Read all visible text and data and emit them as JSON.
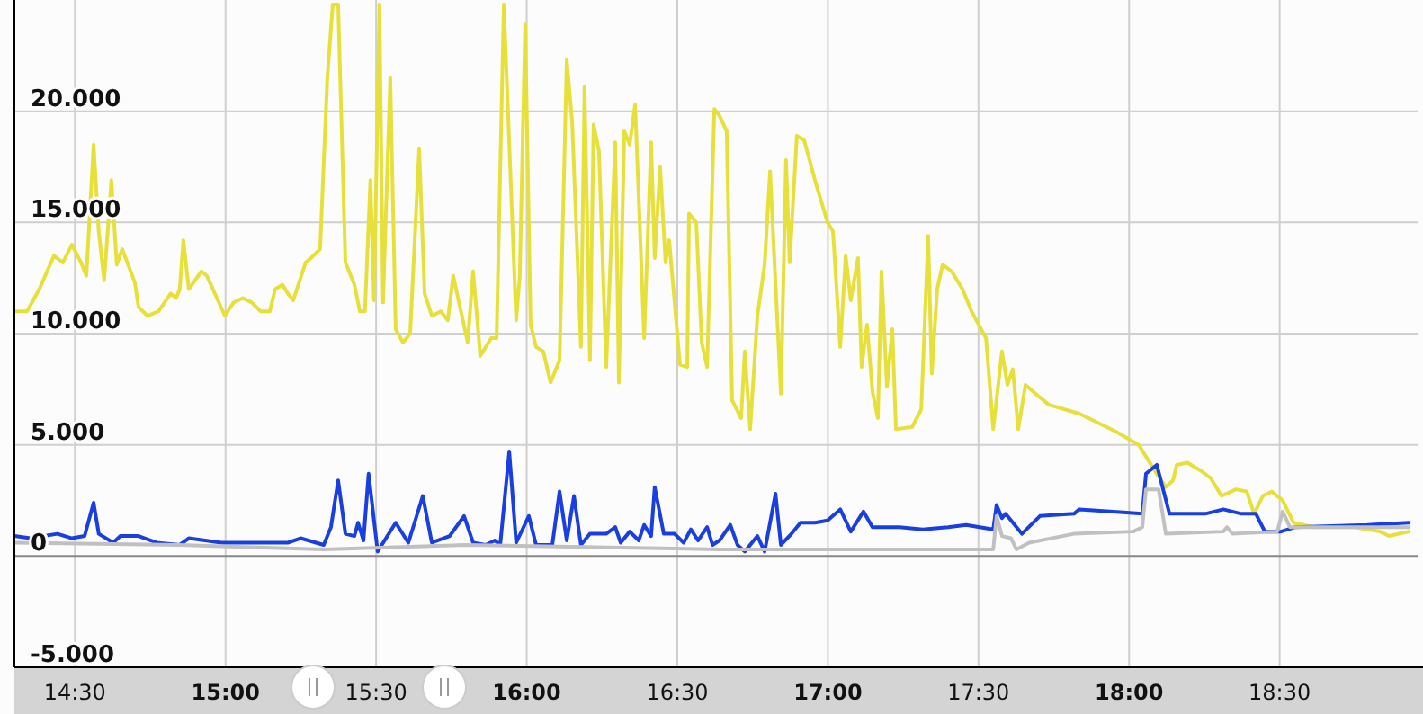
{
  "chart_data": {
    "type": "line",
    "grid": true,
    "marker": "none",
    "line_style": "solid",
    "xlim": [
      14.299,
      18.958
    ],
    "ylim": [
      -5000,
      25000
    ],
    "xticks": [
      {
        "value": 14.5,
        "label": "14:30"
      },
      {
        "value": 15,
        "label": "15:00"
      },
      {
        "value": 15.5,
        "label": "15:30"
      },
      {
        "value": 16,
        "label": "16:00"
      },
      {
        "value": 16.5,
        "label": "16:30"
      },
      {
        "value": 17,
        "label": "17:00"
      },
      {
        "value": 17.5,
        "label": "17:30"
      },
      {
        "value": 18,
        "label": "18:00"
      },
      {
        "value": 18.5,
        "label": "18:30"
      }
    ],
    "yticks": [
      {
        "value": -5000,
        "label": "-5.000"
      },
      0,
      {
        "value": 5000,
        "label": "5.000"
      },
      {
        "value": 10000,
        "label": "10.000"
      },
      {
        "value": 15000,
        "label": "15.000"
      },
      {
        "value": 20000,
        "label": "20.000"
      }
    ],
    "series": [
      {
        "color": "#e8e03a",
        "x": [
          14.299,
          14.341,
          14.382,
          14.43,
          14.46,
          14.49,
          14.52,
          14.538,
          14.562,
          14.579,
          14.597,
          14.621,
          14.639,
          14.657,
          14.699,
          14.711,
          14.741,
          14.777,
          14.818,
          14.836,
          14.848,
          14.86,
          14.878,
          14.92,
          14.938,
          14.998,
          15.027,
          15.057,
          15.087,
          15.117,
          15.147,
          15.165,
          15.189,
          15.207,
          15.225,
          15.266,
          15.284,
          15.314,
          15.338,
          15.356,
          15.374,
          15.398,
          15.428,
          15.446,
          15.463,
          15.481,
          15.493,
          15.511,
          15.523,
          15.547,
          15.565,
          15.589,
          15.613,
          15.643,
          15.661,
          15.685,
          15.715,
          15.738,
          15.756,
          15.804,
          15.822,
          15.846,
          15.882,
          15.9,
          15.924,
          15.965,
          15.977,
          15.995,
          16.013,
          16.031,
          16.055,
          16.079,
          16.109,
          16.133,
          16.151,
          16.18,
          16.192,
          16.21,
          16.222,
          16.24,
          16.264,
          16.294,
          16.306,
          16.324,
          16.342,
          16.36,
          16.39,
          16.413,
          16.425,
          16.443,
          16.461,
          16.473,
          16.509,
          16.533,
          16.539,
          16.563,
          16.581,
          16.599,
          16.623,
          16.64,
          16.664,
          16.682,
          16.712,
          16.724,
          16.742,
          16.766,
          16.79,
          16.808,
          16.844,
          16.861,
          16.873,
          16.897,
          16.921,
          16.957,
          16.999,
          17.017,
          17.041,
          17.059,
          17.076,
          17.1,
          17.112,
          17.13,
          17.148,
          17.166,
          17.178,
          17.196,
          17.214,
          17.226,
          17.28,
          17.31,
          17.333,
          17.345,
          17.363,
          17.381,
          17.411,
          17.447,
          17.477,
          17.525,
          17.549,
          17.578,
          17.596,
          17.614,
          17.632,
          17.656,
          17.698,
          17.734,
          17.835,
          17.955,
          18.032,
          18.092,
          18.122,
          18.146,
          18.158,
          18.194,
          18.242,
          18.271,
          18.307,
          18.355,
          18.391,
          18.415,
          18.444,
          18.474,
          18.51,
          18.546,
          18.612,
          18.749,
          18.833,
          18.863,
          18.929
        ],
        "values": [
          11000,
          11000,
          12000,
          13500,
          13200,
          14000,
          13200,
          12600,
          18500,
          14600,
          12400,
          16900,
          13100,
          13800,
          12300,
          11200,
          10800,
          11000,
          11800,
          11600,
          12000,
          14200,
          12000,
          12800,
          12600,
          10800,
          11400,
          11600,
          11400,
          11000,
          11000,
          12000,
          12200,
          11800,
          11500,
          13200,
          13400,
          13800,
          21500,
          24800,
          24800,
          13200,
          12200,
          11000,
          11000,
          16900,
          11500,
          24800,
          11400,
          21500,
          10200,
          9600,
          10000,
          18300,
          11800,
          10800,
          11000,
          10600,
          12600,
          9600,
          12800,
          9000,
          9800,
          9800,
          24800,
          10600,
          12600,
          23900,
          10400,
          9400,
          9200,
          7800,
          8800,
          22300,
          19500,
          9400,
          21100,
          8800,
          19400,
          18200,
          8500,
          18600,
          7800,
          19100,
          18500,
          20300,
          9800,
          18600,
          13400,
          17500,
          13200,
          14200,
          8600,
          8500,
          15400,
          15000,
          9600,
          8500,
          20100,
          19800,
          19100,
          7000,
          6200,
          9200,
          5700,
          10800,
          13100,
          17300,
          7300,
          17800,
          13200,
          18900,
          18700,
          16900,
          15000,
          14600,
          9400,
          13500,
          11500,
          13400,
          8500,
          10400,
          7400,
          6200,
          12800,
          7600,
          10200,
          5700,
          5800,
          6600,
          14400,
          8200,
          12000,
          13100,
          12800,
          12000,
          11000,
          9800,
          5700,
          9200,
          7700,
          8400,
          5700,
          7700,
          7200,
          6800,
          6400,
          5600,
          5000,
          3700,
          3100,
          3400,
          4100,
          4200,
          3800,
          3500,
          2700,
          3000,
          2900,
          1900,
          2700,
          2900,
          2500,
          1500,
          1300,
          1300,
          1100,
          900,
          1100
        ]
      },
      {
        "color": "#1a3fe0",
        "x": [
          14.299,
          14.352,
          14.442,
          14.49,
          14.532,
          14.562,
          14.579,
          14.627,
          14.651,
          14.711,
          14.771,
          14.848,
          14.878,
          14.986,
          15.207,
          15.249,
          15.326,
          15.35,
          15.374,
          15.398,
          15.428,
          15.44,
          15.458,
          15.475,
          15.505,
          15.565,
          15.607,
          15.655,
          15.685,
          15.744,
          15.792,
          15.822,
          15.864,
          15.894,
          15.912,
          15.942,
          15.965,
          16.007,
          16.031,
          16.085,
          16.109,
          16.133,
          16.157,
          16.18,
          16.21,
          16.264,
          16.294,
          16.312,
          16.342,
          16.372,
          16.39,
          16.413,
          16.425,
          16.455,
          16.491,
          16.521,
          16.545,
          16.569,
          16.599,
          16.617,
          16.64,
          16.676,
          16.7,
          16.724,
          16.766,
          16.79,
          16.826,
          16.844,
          16.879,
          16.909,
          16.957,
          16.999,
          17.041,
          17.076,
          17.118,
          17.148,
          17.238,
          17.315,
          17.399,
          17.459,
          17.549,
          17.56,
          17.578,
          17.59,
          17.644,
          17.704,
          17.817,
          17.835,
          17.937,
          18.044,
          18.056,
          18.092,
          18.134,
          18.253,
          18.313,
          18.373,
          18.421,
          18.451,
          18.504,
          18.552,
          18.791,
          18.929
        ],
        "values": [
          900,
          800,
          1000,
          800,
          900,
          2400,
          1000,
          600,
          900,
          900,
          600,
          500,
          800,
          600,
          600,
          800,
          500,
          1300,
          3400,
          1000,
          900,
          1500,
          700,
          3700,
          200,
          1500,
          600,
          2700,
          600,
          900,
          1800,
          600,
          500,
          700,
          500,
          4700,
          600,
          1800,
          500,
          500,
          2900,
          700,
          2700,
          500,
          1000,
          1000,
          1300,
          600,
          1100,
          700,
          1400,
          900,
          3100,
          1000,
          1000,
          600,
          1200,
          700,
          1300,
          500,
          700,
          1400,
          500,
          200,
          900,
          200,
          2800,
          500,
          1000,
          1500,
          1500,
          1600,
          2100,
          1100,
          2000,
          1300,
          1300,
          1200,
          1300,
          1400,
          1200,
          2300,
          1700,
          1900,
          1000,
          1800,
          1900,
          2100,
          2000,
          1900,
          3700,
          4100,
          1900,
          1900,
          2100,
          1900,
          1900,
          1100,
          1100,
          1300,
          1400,
          1500
        ]
      },
      {
        "color": "#c0c0c0",
        "x": [
          14.299,
          14.848,
          15.326,
          15.804,
          16.64,
          17.549,
          17.56,
          17.578,
          17.608,
          17.626,
          17.668,
          17.817,
          18.014,
          18.044,
          18.056,
          18.098,
          18.122,
          18.313,
          18.325,
          18.343,
          18.492,
          18.51,
          18.534,
          18.929
        ],
        "values": [
          600,
          500,
          300,
          500,
          300,
          300,
          1800,
          900,
          800,
          300,
          600,
          1000,
          1100,
          1300,
          3000,
          3000,
          1000,
          1100,
          1300,
          1000,
          1100,
          2000,
          1300,
          1300
        ]
      }
    ]
  }
}
